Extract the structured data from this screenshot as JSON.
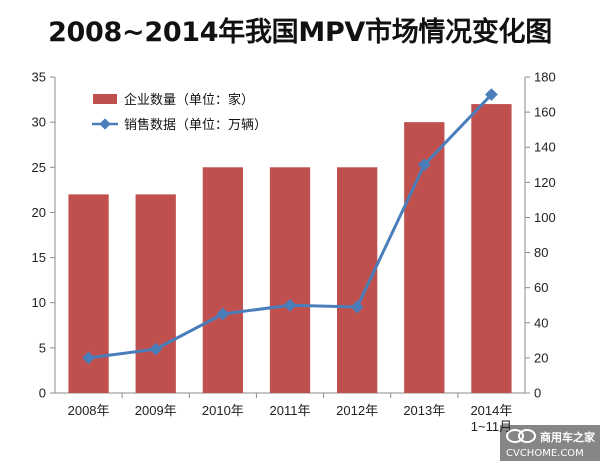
{
  "chart_data": {
    "type": "bar",
    "title": "2008~2014年我国MPV市场情况变化图",
    "categories": [
      "2008年",
      "2009年",
      "2010年",
      "2011年",
      "2012年",
      "2013年",
      "2014年 1~11月"
    ],
    "series": [
      {
        "name": "企业数量（单位：家）",
        "type": "bar",
        "axis": "left",
        "color": "#c0504d",
        "values": [
          22,
          22,
          25,
          25,
          25,
          30,
          32
        ]
      },
      {
        "name": "销售数据（单位：万辆）",
        "type": "line",
        "axis": "right",
        "color": "#4a7ebb",
        "values": [
          20,
          25,
          45,
          50,
          49,
          130,
          170
        ]
      }
    ],
    "y_left": {
      "min": 0,
      "max": 35,
      "step": 5
    },
    "y_right": {
      "min": 0,
      "max": 180,
      "step": 20
    },
    "legend": "top-left",
    "grid": false
  },
  "watermark": {
    "brand": "商用车之家",
    "site": "CVCHOME.COM"
  }
}
